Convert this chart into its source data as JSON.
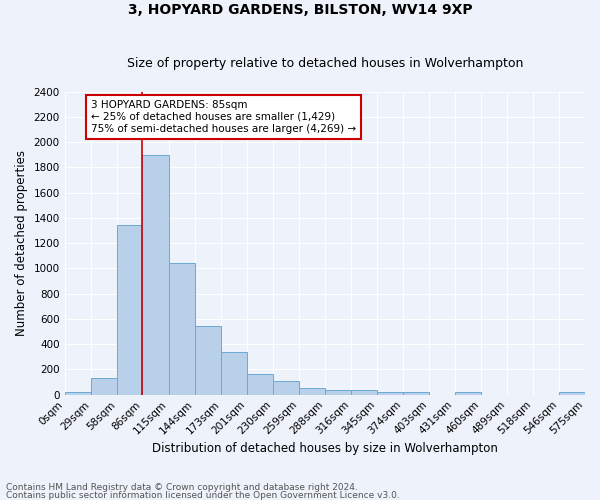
{
  "title": "3, HOPYARD GARDENS, BILSTON, WV14 9XP",
  "subtitle": "Size of property relative to detached houses in Wolverhampton",
  "xlabel": "Distribution of detached houses by size in Wolverhampton",
  "ylabel": "Number of detached properties",
  "footnote1": "Contains HM Land Registry data © Crown copyright and database right 2024.",
  "footnote2": "Contains public sector information licensed under the Open Government Licence v3.0.",
  "bar_edges": [
    0,
    29,
    58,
    86,
    115,
    144,
    173,
    201,
    230,
    259,
    288,
    316,
    345,
    374,
    403,
    431,
    460,
    489,
    518,
    546,
    575
  ],
  "bar_heights": [
    20,
    130,
    1340,
    1900,
    1040,
    540,
    340,
    165,
    105,
    55,
    35,
    35,
    25,
    20,
    0,
    20,
    0,
    0,
    0,
    20
  ],
  "bar_facecolor": "#b8d0ea",
  "bar_edgecolor": "#6aaad4",
  "ylim": [
    0,
    2400
  ],
  "yticks": [
    0,
    200,
    400,
    600,
    800,
    1000,
    1200,
    1400,
    1600,
    1800,
    2000,
    2200,
    2400
  ],
  "xtick_labels": [
    "0sqm",
    "29sqm",
    "58sqm",
    "86sqm",
    "115sqm",
    "144sqm",
    "173sqm",
    "201sqm",
    "230sqm",
    "259sqm",
    "288sqm",
    "316sqm",
    "345sqm",
    "374sqm",
    "403sqm",
    "431sqm",
    "460sqm",
    "489sqm",
    "518sqm",
    "546sqm",
    "575sqm"
  ],
  "vline_x": 86,
  "vline_color": "#cc0000",
  "annotation_text": "3 HOPYARD GARDENS: 85sqm\n← 25% of detached houses are smaller (1,429)\n75% of semi-detached houses are larger (4,269) →",
  "annotation_box_facecolor": "#ffffff",
  "annotation_box_edgecolor": "#cc0000",
  "background_color": "#eef2fa",
  "grid_color": "#ffffff",
  "title_fontsize": 10,
  "subtitle_fontsize": 9,
  "xlabel_fontsize": 8.5,
  "ylabel_fontsize": 8.5,
  "tick_fontsize": 7.5,
  "annotation_fontsize": 7.5,
  "footnote_fontsize": 6.5
}
